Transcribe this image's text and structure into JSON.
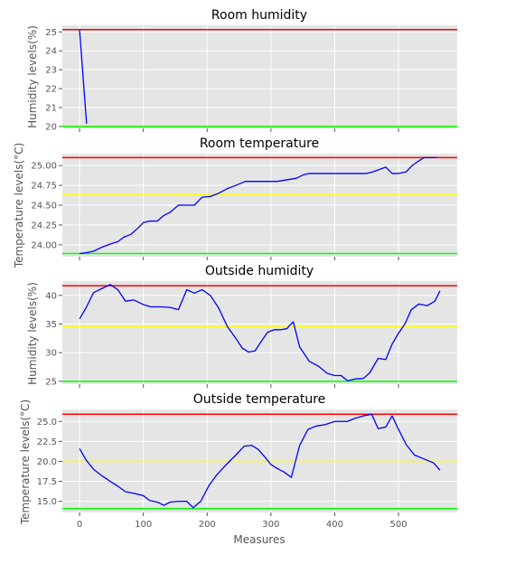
{
  "chart_data": [
    {
      "type": "line",
      "title": "Room humidity",
      "ylabel": "Humidity levels(%)",
      "xlim": [
        -27,
        592
      ],
      "ylim": [
        19.9,
        25.35
      ],
      "yticks": [
        20,
        21,
        22,
        23,
        24,
        25
      ],
      "ytick_labels": [
        "20",
        "21",
        "22",
        "23",
        "24",
        "25"
      ],
      "grid": true,
      "series": [
        {
          "color": "#0000ff",
          "x": [
            0,
            11
          ],
          "y": [
            25.1,
            20.15
          ]
        }
      ],
      "hlines": [
        {
          "y": 25.12,
          "color": "#ff0000"
        },
        {
          "y": 20.02,
          "color": "#ffff00"
        },
        {
          "y": 20.0,
          "color": "#00ff00"
        }
      ]
    },
    {
      "type": "line",
      "title": "Room temperature",
      "ylabel": "Temperature levels(°C)",
      "xlim": [
        -27,
        592
      ],
      "ylim": [
        23.85,
        25.15
      ],
      "yticks": [
        24.0,
        24.25,
        24.5,
        24.75,
        25.0
      ],
      "ytick_labels": [
        "24.00",
        "24.25",
        "24.50",
        "24.75",
        "25.00"
      ],
      "grid": true,
      "series": [
        {
          "color": "#0000ff",
          "x": [
            0,
            10,
            22,
            35,
            48,
            60,
            70,
            80,
            90,
            100,
            110,
            122,
            132,
            142,
            155,
            168,
            180,
            192,
            205,
            218,
            232,
            245,
            260,
            270,
            280,
            295,
            310,
            325,
            340,
            350,
            360,
            375,
            390,
            405,
            420,
            435,
            450,
            460,
            470,
            480,
            490,
            500,
            512,
            520,
            530,
            540,
            550,
            560
          ],
          "y": [
            23.89,
            23.9,
            23.92,
            23.97,
            24.01,
            24.04,
            24.1,
            24.13,
            24.2,
            24.28,
            24.3,
            24.3,
            24.37,
            24.41,
            24.5,
            24.5,
            24.5,
            24.6,
            24.61,
            24.65,
            24.71,
            24.75,
            24.8,
            24.8,
            24.8,
            24.8,
            24.8,
            24.82,
            24.84,
            24.88,
            24.9,
            24.9,
            24.9,
            24.9,
            24.9,
            24.9,
            24.9,
            24.92,
            24.95,
            24.98,
            24.9,
            24.9,
            24.92,
            24.99,
            25.05,
            25.1,
            25.1,
            25.1
          ]
        }
      ],
      "hlines": [
        {
          "y": 25.1,
          "color": "#ff0000"
        },
        {
          "y": 24.63,
          "color": "#ffff00"
        },
        {
          "y": 23.89,
          "color": "#00ff00"
        }
      ]
    },
    {
      "type": "line",
      "title": "Outside humidity",
      "ylabel": "Humidity levels(%)",
      "xlim": [
        -27,
        592
      ],
      "ylim": [
        24.5,
        42.5
      ],
      "yticks": [
        25,
        30,
        35,
        40
      ],
      "ytick_labels": [
        "25",
        "30",
        "35",
        "40"
      ],
      "grid": true,
      "series": [
        {
          "color": "#0000ff",
          "x": [
            0,
            10,
            22,
            35,
            48,
            60,
            72,
            85,
            100,
            112,
            128,
            142,
            155,
            168,
            180,
            192,
            205,
            218,
            232,
            245,
            255,
            265,
            275,
            285,
            295,
            305,
            315,
            325,
            335,
            345,
            360,
            375,
            388,
            400,
            410,
            420,
            432,
            445,
            455,
            468,
            480,
            490,
            500,
            510,
            520,
            532,
            545,
            557,
            565
          ],
          "y": [
            35.9,
            37.8,
            40.5,
            41.2,
            41.9,
            41.0,
            39.0,
            39.2,
            38.4,
            38.0,
            38.0,
            37.9,
            37.5,
            41.0,
            40.4,
            41.0,
            40.0,
            37.8,
            34.5,
            32.5,
            30.8,
            30.1,
            30.3,
            32.0,
            33.6,
            34.0,
            34.0,
            34.2,
            35.4,
            31.0,
            28.5,
            27.6,
            26.4,
            26.0,
            26.0,
            25.1,
            25.4,
            25.5,
            26.5,
            29.0,
            28.8,
            31.5,
            33.4,
            35.0,
            37.5,
            38.5,
            38.2,
            39.0,
            40.8
          ]
        }
      ],
      "hlines": [
        {
          "y": 41.7,
          "color": "#ff0000"
        },
        {
          "y": 34.5,
          "color": "#ffff00"
        },
        {
          "y": 25.0,
          "color": "#00ff00"
        }
      ]
    },
    {
      "type": "line",
      "title": "Outside temperature",
      "ylabel": "Temperature levels(°C)",
      "xlabel": "Measures",
      "xlim": [
        -27,
        592
      ],
      "ylim": [
        13.6,
        26.5
      ],
      "xticks": [
        0,
        100,
        200,
        300,
        400,
        500
      ],
      "xtick_labels": [
        "0",
        "100",
        "200",
        "300",
        "400",
        "500"
      ],
      "yticks": [
        15.0,
        17.5,
        20.0,
        22.5,
        25.0
      ],
      "ytick_labels": [
        "15.0",
        "17.5",
        "20.0",
        "22.5",
        "25.0"
      ],
      "grid": true,
      "series": [
        {
          "color": "#0000ff",
          "x": [
            0,
            10,
            22,
            35,
            48,
            60,
            72,
            85,
            100,
            110,
            122,
            132,
            142,
            155,
            168,
            178,
            190,
            203,
            215,
            230,
            245,
            258,
            270,
            280,
            290,
            300,
            310,
            320,
            332,
            345,
            358,
            370,
            385,
            400,
            410,
            420,
            432,
            445,
            458,
            468,
            480,
            490,
            500,
            512,
            525,
            540,
            555,
            565
          ],
          "y": [
            21.6,
            20.2,
            19.0,
            18.2,
            17.5,
            16.9,
            16.2,
            16.0,
            15.7,
            15.1,
            14.9,
            14.5,
            14.9,
            15.0,
            15.0,
            14.2,
            15.0,
            17.0,
            18.3,
            19.6,
            20.8,
            21.9,
            22.0,
            21.5,
            20.6,
            19.6,
            19.1,
            18.7,
            18.0,
            22.0,
            24.0,
            24.4,
            24.6,
            25.0,
            25.0,
            25.0,
            25.4,
            25.7,
            25.9,
            24.1,
            24.3,
            25.7,
            24.0,
            22.1,
            20.8,
            20.3,
            19.8,
            18.9
          ]
        }
      ],
      "hlines": [
        {
          "y": 25.9,
          "color": "#ff0000"
        },
        {
          "y": 20.0,
          "color": "#ffff00"
        },
        {
          "y": 14.1,
          "color": "#00ff00"
        }
      ]
    }
  ]
}
